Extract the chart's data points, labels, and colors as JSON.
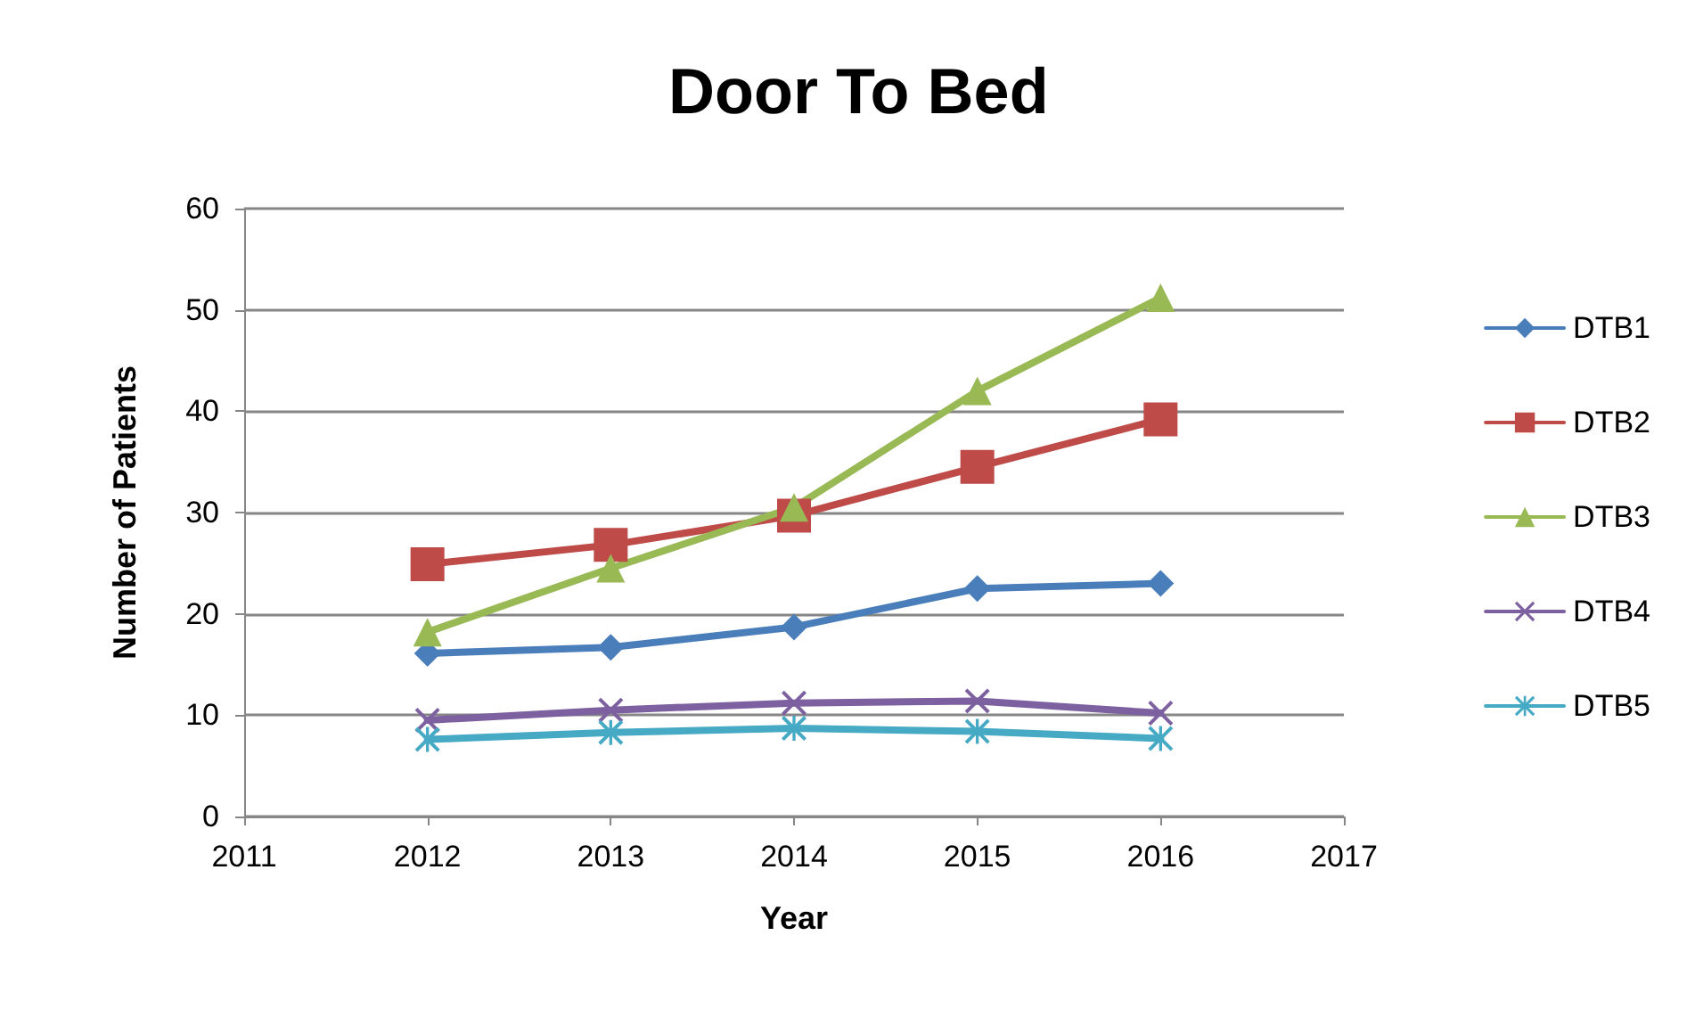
{
  "chart_data": {
    "type": "line",
    "title": "Door To Bed",
    "xlabel": "Year",
    "ylabel": "Number of Patients",
    "x": [
      2012,
      2013,
      2014,
      2015,
      2016
    ],
    "series": [
      {
        "name": "DTB1",
        "color": "#4a7ebb",
        "marker": "diamond",
        "values": [
          16.1,
          16.7,
          18.7,
          22.5,
          23.0
        ]
      },
      {
        "name": "DTB2",
        "color": "#be4b48",
        "marker": "square",
        "values": [
          24.9,
          26.8,
          29.7,
          34.5,
          39.2
        ]
      },
      {
        "name": "DTB3",
        "color": "#98b954",
        "marker": "triangle",
        "values": [
          18.2,
          24.5,
          30.5,
          42.0,
          51.2
        ]
      },
      {
        "name": "DTB4",
        "color": "#7d60a0",
        "marker": "cross",
        "values": [
          9.5,
          10.5,
          11.2,
          11.4,
          10.2
        ]
      },
      {
        "name": "DTB5",
        "color": "#46aac5",
        "marker": "star",
        "values": [
          7.6,
          8.3,
          8.7,
          8.4,
          7.7
        ]
      }
    ],
    "xlim": [
      2011,
      2017
    ],
    "xticks": [
      2011,
      2012,
      2013,
      2014,
      2015,
      2016,
      2017
    ],
    "ylim": [
      0,
      60
    ],
    "yticks": [
      0,
      10,
      20,
      30,
      40,
      50,
      60
    ],
    "grid": "y",
    "legend": "right",
    "line_style": "solid"
  }
}
